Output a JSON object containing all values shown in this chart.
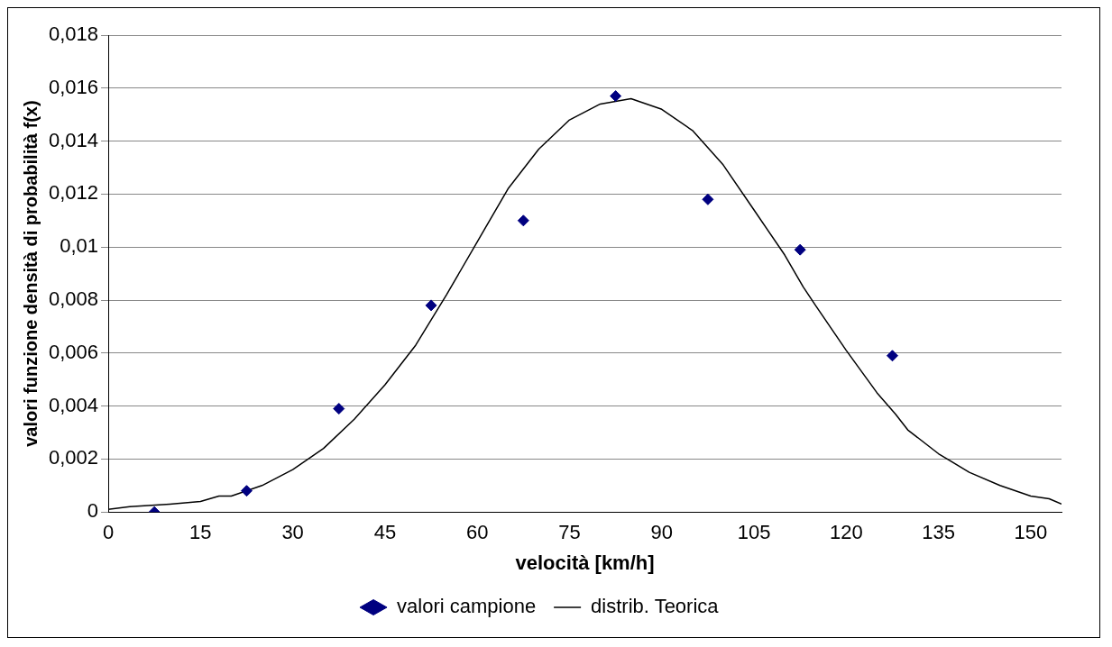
{
  "chart_data": {
    "type": "scatter",
    "xlabel": "velocità [km/h]",
    "ylabel": "valori funzione densità di probabilità f(x)",
    "xlim": [
      0,
      155
    ],
    "xticks": [
      0,
      15,
      30,
      45,
      60,
      75,
      90,
      105,
      120,
      135,
      150
    ],
    "ylim": [
      0,
      0.018
    ],
    "yticks": [
      {
        "value": 0,
        "label": "0"
      },
      {
        "value": 0.002,
        "label": "0,002"
      },
      {
        "value": 0.004,
        "label": "0,004"
      },
      {
        "value": 0.006,
        "label": "0,006"
      },
      {
        "value": 0.008,
        "label": "0,008"
      },
      {
        "value": 0.01,
        "label": "0,01"
      },
      {
        "value": 0.012,
        "label": "0,012"
      },
      {
        "value": 0.014,
        "label": "0,014"
      },
      {
        "value": 0.016,
        "label": "0,016"
      },
      {
        "value": 0.018,
        "label": "0,018"
      }
    ],
    "grid": "y",
    "legend": "bottom",
    "series": [
      {
        "name": "valori campione",
        "type": "scatter",
        "marker": "diamond",
        "color": "#000080",
        "x": [
          7.5,
          22.5,
          37.5,
          52.5,
          67.5,
          82.5,
          97.5,
          112.5,
          127.5
        ],
        "values": [
          0,
          0.0008,
          0.0039,
          0.0078,
          0.011,
          0.0157,
          0.0118,
          0.0099,
          0.0059
        ]
      },
      {
        "name": "distrib. Teorica",
        "type": "line",
        "marker": "none",
        "color": "#000000",
        "x": [
          0,
          3.5,
          10,
          15,
          18,
          20,
          25,
          30,
          35,
          40,
          45,
          50,
          55,
          60,
          65,
          70,
          75,
          80,
          85,
          90,
          95,
          100,
          105,
          110,
          113,
          115,
          120,
          125,
          128,
          130,
          135,
          140,
          145,
          150,
          153,
          155
        ],
        "values": [
          0.0001,
          0.0002,
          0.0003,
          0.0004,
          0.0006,
          0.0006,
          0.001,
          0.0016,
          0.0024,
          0.0035,
          0.0048,
          0.0063,
          0.0082,
          0.0102,
          0.0122,
          0.0137,
          0.0148,
          0.0154,
          0.0156,
          0.0152,
          0.0144,
          0.0131,
          0.0114,
          0.0097,
          0.0085,
          0.0078,
          0.0061,
          0.0045,
          0.0037,
          0.0031,
          0.0022,
          0.0015,
          0.001,
          0.0006,
          0.0005,
          0.0003
        ]
      }
    ]
  }
}
